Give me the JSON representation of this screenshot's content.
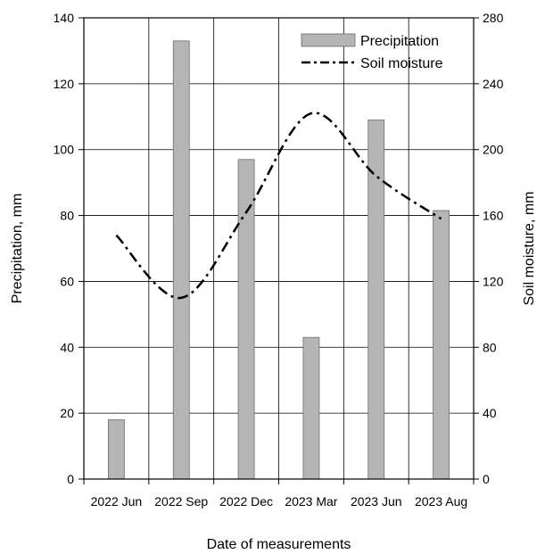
{
  "chart_data": {
    "type": "bar",
    "categories": [
      "2022 Jun",
      "2022 Sep",
      "2022 Dec",
      "2023 Mar",
      "2023 Jun",
      "2023 Aug"
    ],
    "xlabel": "Date of measurements",
    "ylabel_left": "Precipitation, mm",
    "ylabel_right": "Soil moisture, mm",
    "ylim_left": [
      0,
      140
    ],
    "yticks_left": [
      0,
      20,
      40,
      60,
      80,
      100,
      120,
      140
    ],
    "ylim_right": [
      0,
      280
    ],
    "yticks_right": [
      0,
      40,
      80,
      120,
      160,
      200,
      240,
      280
    ],
    "grid": true,
    "legend_position": "top-right",
    "series": [
      {
        "name": "Precipitation",
        "type": "bar",
        "axis": "left",
        "color": "#b5b5b5",
        "values": [
          18,
          133,
          97,
          43,
          109,
          81.5
        ]
      },
      {
        "name": "Soil moisture",
        "type": "line",
        "axis": "right",
        "style": "dash-dot",
        "color": "#000000",
        "points": [
          {
            "x": "2022 Jun",
            "y": 148
          },
          {
            "x": "2022 Sep",
            "y": 110
          },
          {
            "x": "2022 Dec",
            "y": 162
          },
          {
            "x": "2023 Mar",
            "y": 222
          },
          {
            "x": "2023 Jun",
            "y": 184
          },
          {
            "x": "2023 Aug",
            "y": 158
          }
        ]
      }
    ]
  }
}
